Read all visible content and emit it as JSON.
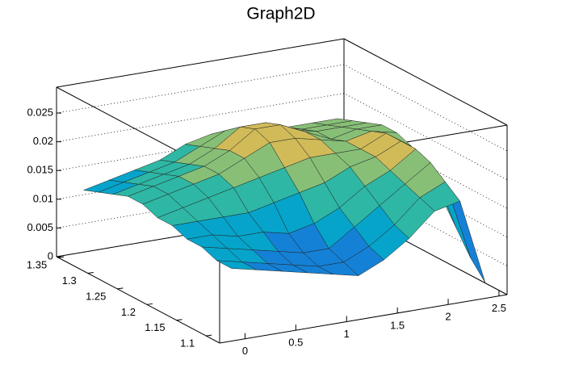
{
  "chart_data": {
    "type": "surface",
    "title": "Graph2D",
    "x": [
      0,
      0.25,
      0.5,
      0.75,
      1,
      1.25,
      1.5,
      1.75,
      2,
      2.25,
      2.5
    ],
    "y": [
      1.1,
      1.125,
      1.15,
      1.175,
      1.2,
      1.225,
      1.25,
      1.275,
      1.3,
      1.325,
      1.35
    ],
    "z": [
      [
        0.011,
        0.01,
        0.009,
        0.008,
        0.007,
        0.006,
        0.008,
        0.011,
        0.015,
        0.016,
        0.001
      ],
      [
        0.011,
        0.01,
        0.009,
        0.008,
        0.007,
        0.007,
        0.009,
        0.012,
        0.016,
        0.018,
        0.004
      ],
      [
        0.012,
        0.011,
        0.01,
        0.009,
        0.008,
        0.008,
        0.011,
        0.014,
        0.017,
        0.02,
        0.008
      ],
      [
        0.012,
        0.012,
        0.011,
        0.011,
        0.01,
        0.011,
        0.013,
        0.016,
        0.018,
        0.021,
        0.012
      ],
      [
        0.013,
        0.013,
        0.013,
        0.013,
        0.014,
        0.015,
        0.016,
        0.018,
        0.019,
        0.021,
        0.015
      ],
      [
        0.013,
        0.014,
        0.015,
        0.016,
        0.017,
        0.018,
        0.019,
        0.019,
        0.019,
        0.021,
        0.018
      ],
      [
        0.014,
        0.015,
        0.016,
        0.017,
        0.019,
        0.021,
        0.021,
        0.02,
        0.019,
        0.02,
        0.019
      ],
      [
        0.014,
        0.015,
        0.016,
        0.017,
        0.019,
        0.022,
        0.022,
        0.02,
        0.018,
        0.019,
        0.019
      ],
      [
        0.013,
        0.014,
        0.015,
        0.016,
        0.018,
        0.021,
        0.021,
        0.019,
        0.018,
        0.018,
        0.018
      ],
      [
        0.012,
        0.013,
        0.014,
        0.015,
        0.017,
        0.019,
        0.019,
        0.018,
        0.017,
        0.017,
        0.017
      ],
      [
        0.011,
        0.012,
        0.013,
        0.014,
        0.016,
        0.017,
        0.017,
        0.016,
        0.016,
        0.016,
        0.016
      ]
    ],
    "xlim": [
      -0.25,
      2.58
    ],
    "xticks": [
      0,
      0.5,
      1,
      1.5,
      2,
      2.5
    ],
    "ylim": [
      1.077,
      1.353
    ],
    "yticks": [
      1.1,
      1.15,
      1.2,
      1.25,
      1.3,
      1.35
    ],
    "zlim": [
      0,
      0.0295
    ],
    "zticks": [
      0,
      0.005,
      0.01,
      0.015,
      0.02,
      0.025
    ],
    "grid": true,
    "palette": [
      "#352a87",
      "#0f5cdd",
      "#1481d6",
      "#06a4ca",
      "#2eb7a4",
      "#87bf77",
      "#d1bb59",
      "#fec832",
      "#f9fb0e"
    ]
  }
}
